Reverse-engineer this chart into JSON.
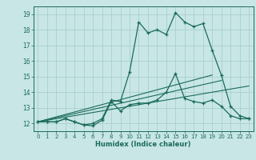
{
  "xlabel": "Humidex (Indice chaleur)",
  "bg_color": "#c8e6e6",
  "grid_color": "#aacfcf",
  "line_color": "#1a6b5a",
  "spine_color": "#1a6b5a",
  "xlim": [
    -0.5,
    23.5
  ],
  "ylim": [
    11.5,
    19.5
  ],
  "xticks": [
    0,
    1,
    2,
    3,
    4,
    5,
    6,
    7,
    8,
    9,
    10,
    11,
    12,
    13,
    14,
    15,
    16,
    17,
    18,
    19,
    20,
    21,
    22,
    23
  ],
  "yticks": [
    12,
    13,
    14,
    15,
    16,
    17,
    18,
    19
  ],
  "curve_x": [
    0,
    1,
    2,
    3,
    4,
    5,
    6,
    7,
    8,
    9,
    10,
    11,
    12,
    13,
    14,
    15,
    16,
    17,
    18,
    19,
    20,
    21,
    22,
    23
  ],
  "curve_y": [
    12.1,
    12.1,
    12.1,
    12.3,
    12.1,
    11.9,
    11.85,
    12.2,
    13.4,
    12.8,
    13.2,
    13.3,
    13.3,
    13.5,
    14.0,
    15.2,
    13.6,
    13.4,
    13.3,
    13.5,
    13.1,
    12.5,
    12.3,
    12.3
  ],
  "humidex_x": [
    0,
    1,
    2,
    3,
    4,
    5,
    6,
    7,
    8,
    9,
    10,
    11,
    12,
    13,
    14,
    15,
    16,
    17,
    18,
    19,
    20,
    21,
    22,
    23
  ],
  "humidex_y": [
    12.1,
    12.1,
    12.1,
    12.3,
    12.1,
    11.9,
    12.0,
    12.3,
    13.5,
    13.4,
    15.3,
    18.5,
    17.8,
    18.0,
    17.7,
    19.1,
    18.5,
    18.2,
    18.4,
    16.7,
    15.1,
    13.1,
    12.5,
    12.3
  ],
  "line1_x": [
    0,
    19
  ],
  "line1_y": [
    12.1,
    15.1
  ],
  "line2_x": [
    0,
    20
  ],
  "line2_y": [
    12.1,
    14.75
  ],
  "line3_x": [
    0,
    23
  ],
  "line3_y": [
    12.1,
    14.4
  ]
}
